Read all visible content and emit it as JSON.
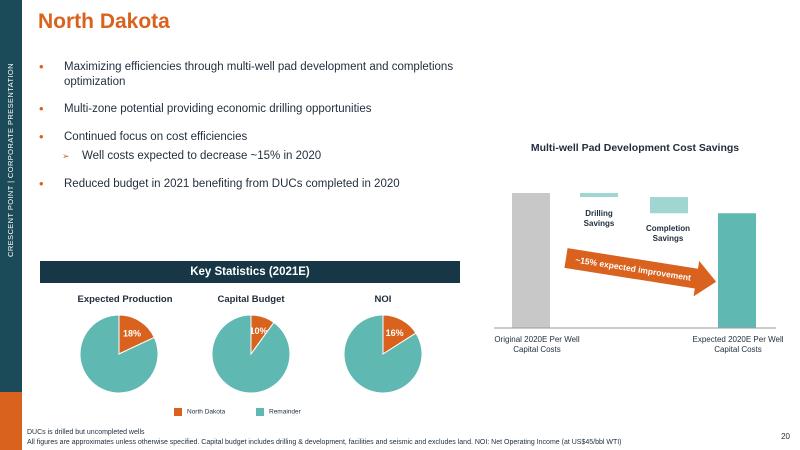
{
  "side": {
    "label": "CRESCENT POINT  |  CORPORATE PRESENTATION"
  },
  "title": "North Dakota",
  "bullets": [
    "Maximizing efficiencies through multi-well pad development and completions optimization",
    "Multi-zone potential providing economic drilling opportunities",
    "Continued focus on cost efficiencies",
    "Reduced budget in 2021 benefiting from DUCs completed in 2020"
  ],
  "sub_bullet": "Well costs expected to decrease ~15% in 2020",
  "key_stats": {
    "header": "Key Statistics (2021E)",
    "legend": [
      {
        "label": "North Dakota",
        "color": "#d9621e"
      },
      {
        "label": "Remainder",
        "color": "#5fb8b1"
      }
    ]
  },
  "waterfall": {
    "title": "Multi-well Pad Development Cost Savings",
    "drilling_label": "Drilling Savings",
    "completion_label": "Completion Savings",
    "original_label": "Original 2020E Per Well Capital Costs",
    "expected_label": "Expected 2020E Per Well Capital Costs",
    "arrow_text": "~15% expected improvement"
  },
  "chart_data": [
    {
      "type": "pie",
      "title": "Expected Production",
      "categories": [
        "North Dakota",
        "Remainder"
      ],
      "values": [
        18,
        82
      ],
      "labels": [
        "18%",
        ""
      ]
    },
    {
      "type": "pie",
      "title": "Capital Budget",
      "categories": [
        "North Dakota",
        "Remainder"
      ],
      "values": [
        10,
        90
      ],
      "labels": [
        "10%",
        ""
      ]
    },
    {
      "type": "pie",
      "title": "NOI",
      "categories": [
        "North Dakota",
        "Remainder"
      ],
      "values": [
        16,
        84
      ],
      "labels": [
        "16%",
        ""
      ]
    },
    {
      "type": "bar",
      "title": "Multi-well Pad Development Cost Savings",
      "categories": [
        "Original 2020E Per Well Capital Costs",
        "Drilling Savings",
        "Completion Savings",
        "Expected 2020E Per Well Capital Costs"
      ],
      "values": [
        100,
        -3,
        -12,
        85
      ],
      "colors": [
        "#c8c8c8",
        "#9fd6d2",
        "#9fd6d2",
        "#5fb8b1"
      ]
    }
  ],
  "footnote": {
    "line1": "DUCs is drilled but uncompleted wells",
    "line2": "All figures are approximates unless otherwise specified. Capital budget includes drilling & development, facilities and seismic and excludes land. NOI: Net Operating Income (at US$45/bbl WTI)"
  },
  "page_number": "20"
}
